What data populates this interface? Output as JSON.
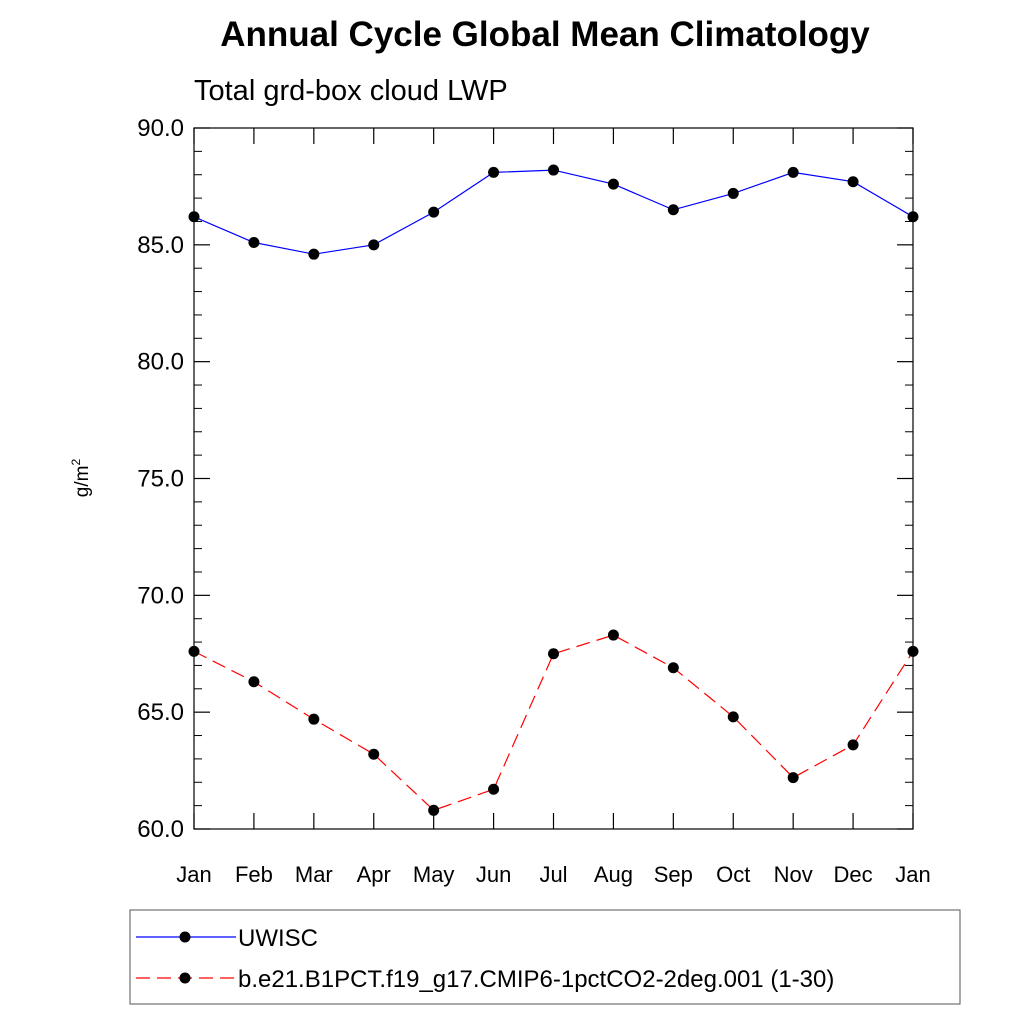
{
  "chart_data": {
    "type": "line",
    "title": "Annual Cycle Global Mean Climatology",
    "subtitle": "Total grd-box cloud LWP",
    "ylabel_base": "g/m",
    "ylabel_sup": "2",
    "xlabel": "",
    "categories": [
      "Jan",
      "Feb",
      "Mar",
      "Apr",
      "May",
      "Jun",
      "Jul",
      "Aug",
      "Sep",
      "Oct",
      "Nov",
      "Dec",
      "Jan"
    ],
    "ylim": [
      60.0,
      90.0
    ],
    "yticks": [
      "60.0",
      "65.0",
      "70.0",
      "75.0",
      "80.0",
      "85.0",
      "90.0"
    ],
    "series": [
      {
        "name": "UWISC",
        "color": "#0000ff",
        "dash": "solid",
        "values": [
          86.2,
          85.1,
          84.6,
          85.0,
          86.4,
          88.1,
          88.2,
          87.6,
          86.5,
          87.2,
          88.1,
          87.7,
          86.2
        ]
      },
      {
        "name": "b.e21.B1PCT.f19_g17.CMIP6-1pctCO2-2deg.001 (1-30)",
        "color": "#ff0000",
        "dash": "dashed",
        "values": [
          67.6,
          66.3,
          64.7,
          63.2,
          60.8,
          61.7,
          67.5,
          68.3,
          66.9,
          64.8,
          62.2,
          63.6,
          67.6
        ]
      }
    ],
    "marker_color": "#000000",
    "legend_position": "bottom"
  }
}
